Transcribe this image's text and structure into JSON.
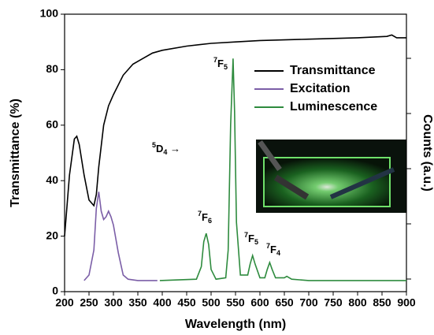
{
  "chart_data": {
    "type": "line",
    "xlabel": "Wavelength (nm)",
    "ylabel": "Transmittance (%)",
    "y2label": "Counts (a.u.)",
    "xlim": [
      200,
      900
    ],
    "xticks": [
      200,
      250,
      300,
      350,
      400,
      450,
      500,
      550,
      600,
      650,
      700,
      750,
      800,
      850,
      900
    ],
    "ylim": [
      0,
      100
    ],
    "yticks": [
      0,
      20,
      40,
      60,
      80,
      100
    ],
    "legend": "upper right",
    "series": [
      {
        "name": "Transmittance",
        "color": "#000000",
        "x": [
          200,
          210,
          220,
          225,
          230,
          240,
          250,
          260,
          265,
          270,
          280,
          290,
          300,
          320,
          340,
          360,
          380,
          400,
          450,
          500,
          550,
          600,
          700,
          800,
          860,
          870,
          880,
          900
        ],
        "values": [
          20,
          42,
          55,
          56,
          53,
          42,
          33,
          31,
          35,
          45,
          60,
          67,
          71,
          78,
          82,
          84,
          86,
          87,
          88.5,
          89.5,
          90,
          90.5,
          91,
          91.5,
          92,
          92.5,
          91.5,
          91.5
        ]
      },
      {
        "name": "Excitation",
        "color": "#7b5ea7",
        "x": [
          240,
          250,
          260,
          265,
          270,
          275,
          280,
          285,
          290,
          295,
          300,
          310,
          320,
          330,
          350,
          390
        ],
        "values": [
          4,
          6,
          15,
          30,
          36,
          29,
          26,
          27,
          29,
          27,
          24,
          14,
          6,
          4.5,
          4,
          4
        ]
      },
      {
        "name": "Luminescence",
        "color": "#2e8b3e",
        "x": [
          395,
          470,
          480,
          485,
          490,
          495,
          500,
          510,
          530,
          535,
          540,
          545,
          548,
          552,
          560,
          575,
          580,
          585,
          590,
          600,
          610,
          615,
          620,
          625,
          632,
          650,
          655,
          665,
          700,
          900
        ],
        "values": [
          4,
          4.5,
          9,
          18,
          21,
          17,
          8,
          4.5,
          5,
          15,
          60,
          84,
          65,
          25,
          6,
          6,
          10,
          13,
          10,
          5,
          5,
          8,
          10.5,
          8,
          5,
          5,
          5.5,
          4.5,
          4,
          4
        ]
      }
    ],
    "annotations": [
      {
        "sup": "5",
        "base": "D",
        "sub": "4",
        "suffix": " →"
      },
      {
        "sup": "7",
        "base": "F",
        "sub": "6"
      },
      {
        "sup": "7",
        "base": "F",
        "sub": "5"
      },
      {
        "sup": "7",
        "base": "F",
        "sub": "5"
      },
      {
        "sup": "7",
        "base": "F",
        "sub": "4"
      }
    ]
  }
}
